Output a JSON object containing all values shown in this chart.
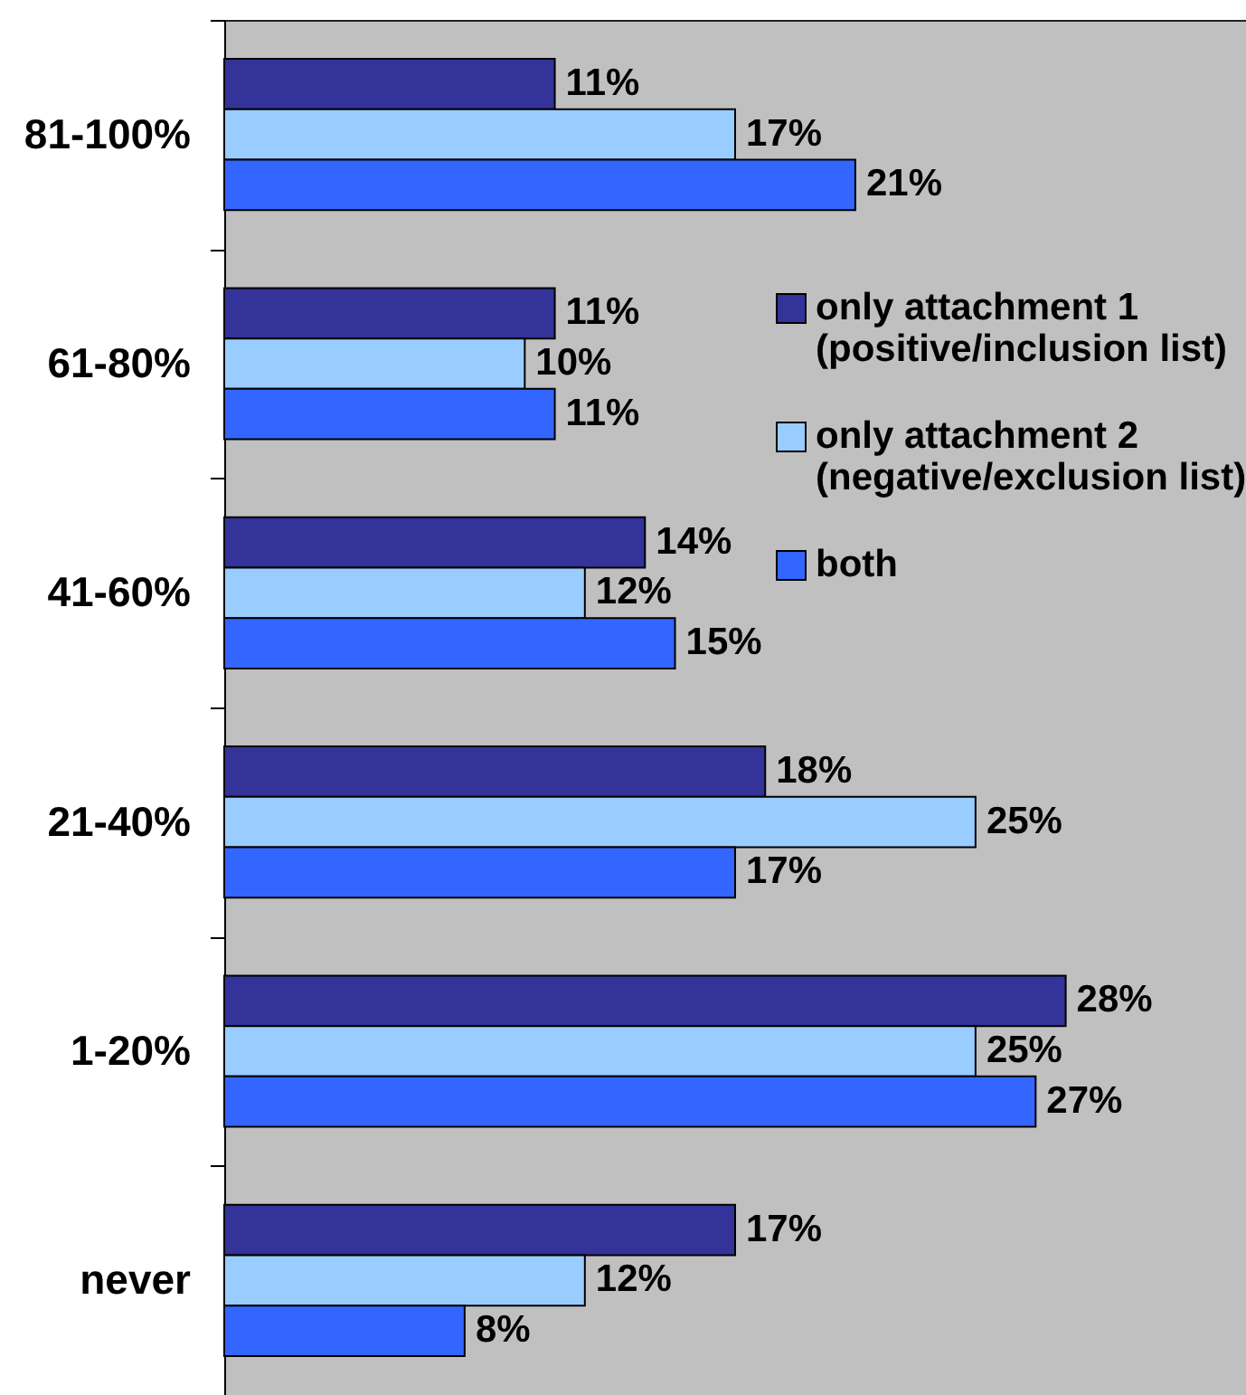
{
  "chart_data": {
    "type": "bar",
    "orientation": "horizontal",
    "categories": [
      "81-100%",
      "61-80%",
      "41-60%",
      "21-40%",
      "1-20%",
      "never"
    ],
    "series": [
      {
        "name": "only attachment 1 (positive/inclusion list)",
        "color": "#333399",
        "values": [
          11,
          11,
          14,
          18,
          28,
          17
        ],
        "value_labels": [
          "11%",
          "11%",
          "14%",
          "18%",
          "28%",
          "17%"
        ]
      },
      {
        "name": "only attachment 2 (negative/exclusion list)",
        "color": "#99ccff",
        "values": [
          17,
          10,
          12,
          25,
          25,
          12
        ],
        "value_labels": [
          "17%",
          "10%",
          "12%",
          "25%",
          "25%",
          "12%"
        ]
      },
      {
        "name": "both",
        "color": "#3366ff",
        "values": [
          21,
          11,
          15,
          17,
          27,
          8
        ],
        "value_labels": [
          "21%",
          "11%",
          "15%",
          "17%",
          "27%",
          "8%"
        ]
      }
    ],
    "xlim": [
      0,
      34
    ],
    "tick_labels": "y",
    "legend": "top right"
  }
}
